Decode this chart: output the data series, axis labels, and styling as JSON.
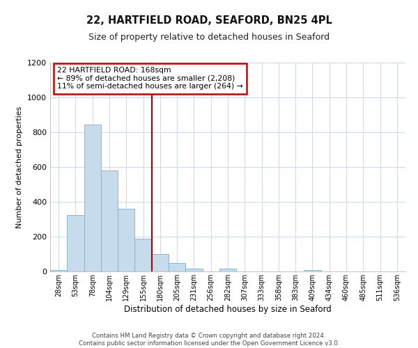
{
  "title": "22, HARTFIELD ROAD, SEAFORD, BN25 4PL",
  "subtitle": "Size of property relative to detached houses in Seaford",
  "xlabel": "Distribution of detached houses by size in Seaford",
  "ylabel": "Number of detached properties",
  "bar_labels": [
    "28sqm",
    "53sqm",
    "78sqm",
    "104sqm",
    "129sqm",
    "155sqm",
    "180sqm",
    "205sqm",
    "231sqm",
    "256sqm",
    "282sqm",
    "307sqm",
    "333sqm",
    "358sqm",
    "383sqm",
    "409sqm",
    "434sqm",
    "460sqm",
    "485sqm",
    "511sqm",
    "536sqm"
  ],
  "bar_heights": [
    10,
    325,
    845,
    580,
    360,
    190,
    100,
    47,
    18,
    0,
    18,
    0,
    0,
    0,
    0,
    10,
    0,
    0,
    0,
    0,
    0
  ],
  "bar_color": "#c6dcec",
  "bar_edgecolor": "#7ab0cc",
  "vline_x": 5.5,
  "vline_color": "#aa0000",
  "annotation_title": "22 HARTFIELD ROAD: 168sqm",
  "annotation_line1": "← 89% of detached houses are smaller (2,208)",
  "annotation_line2": "11% of semi-detached houses are larger (264) →",
  "annotation_box_edgecolor": "#cc0000",
  "ylim": [
    0,
    1200
  ],
  "yticks": [
    0,
    200,
    400,
    600,
    800,
    1000,
    1200
  ],
  "footer1": "Contains HM Land Registry data © Crown copyright and database right 2024.",
  "footer2": "Contains public sector information licensed under the Open Government Licence v3.0.",
  "background_color": "#ffffff",
  "grid_color": "#ccd8e8"
}
